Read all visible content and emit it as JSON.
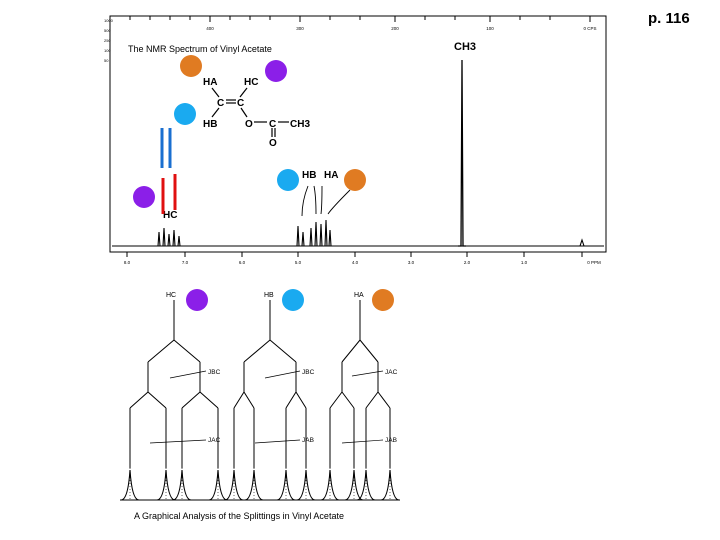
{
  "page": {
    "number": "p. 116"
  },
  "spectrum": {
    "title": "The NMR Spectrum of Vinyl Acetate",
    "left_scale": [
      "1000",
      "500",
      "250",
      "100",
      "50"
    ],
    "top_scale": [
      "400",
      "300",
      "200",
      "100",
      "0 CPS"
    ],
    "ppm_scale": [
      "8.0",
      "7.0",
      "6.0",
      "5.0",
      "4.0",
      "3.0",
      "2.0",
      "1.0",
      "0 PPM"
    ],
    "peak_labels": {
      "ch3": "CH3",
      "hb": "HB",
      "ha": "HA",
      "hc": "HC"
    },
    "structure": {
      "ha": "HA",
      "hc": "HC",
      "hb": "HB",
      "c1": "C",
      "c2": "C",
      "o1": "O",
      "c3": "C",
      "ch3": "CH3",
      "o2": "O"
    }
  },
  "splitting": {
    "caption": "A Graphical Analysis of the Splittings in Vinyl Acetate",
    "headers": [
      "HC",
      "HB",
      "HA"
    ],
    "couplings": [
      [
        "JBC",
        "JAC"
      ],
      [
        "JBC",
        "JAB"
      ],
      [
        "JAC",
        "JAB"
      ]
    ]
  },
  "markers": {
    "orange": "#e07b22",
    "purple": "#8b1fe8",
    "blue": "#1aaaf0",
    "red": "#e01010",
    "line_blue": "#1a6fd0"
  }
}
